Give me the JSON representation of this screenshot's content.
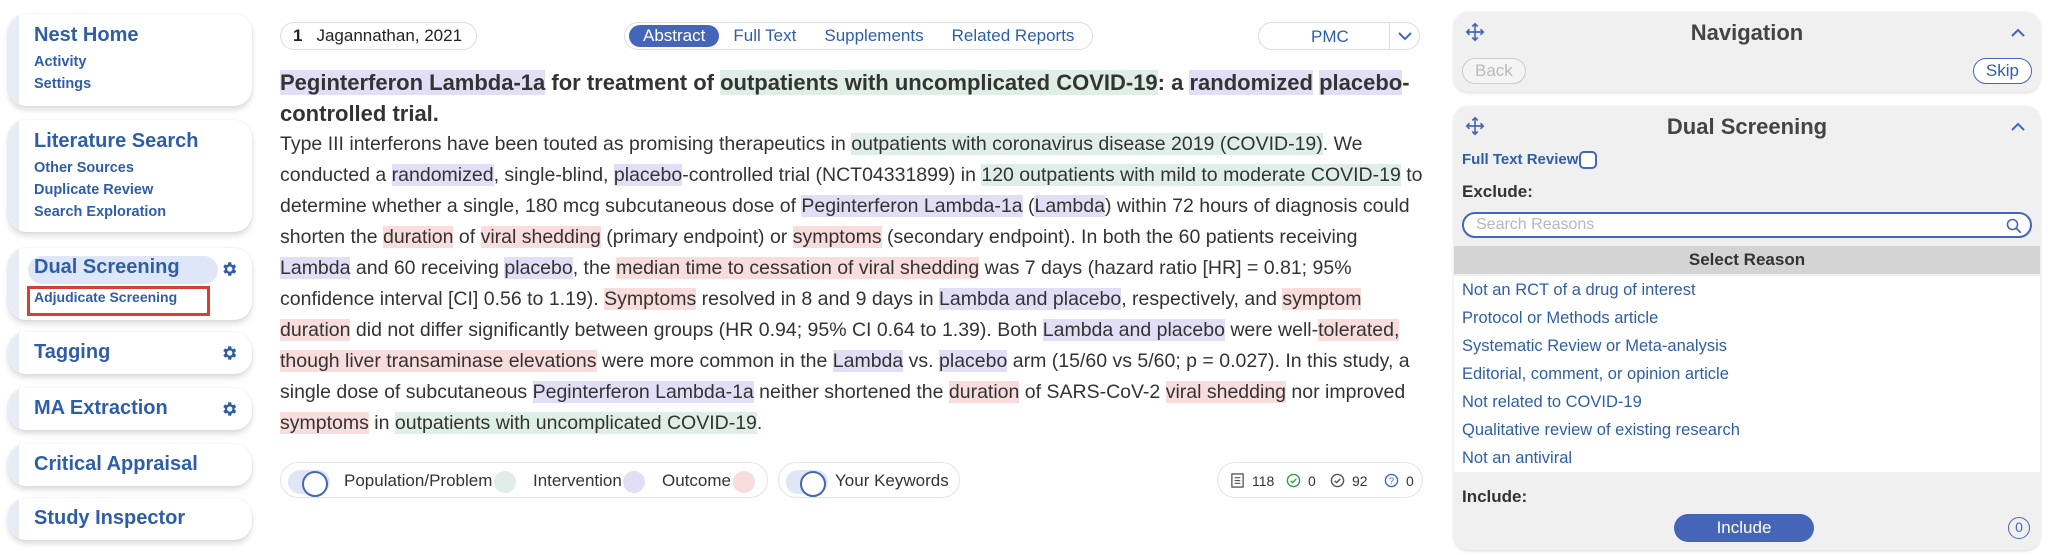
{
  "sidebar": {
    "nest_home": {
      "title": "Nest Home",
      "links": [
        "Activity",
        "Settings"
      ]
    },
    "literature_search": {
      "title": "Literature Search",
      "links": [
        "Other Sources",
        "Duplicate Review",
        "Search Exploration"
      ]
    },
    "dual_screening": {
      "title": "Dual Screening",
      "links": [
        "Adjudicate Screening"
      ]
    },
    "tagging": {
      "title": "Tagging"
    },
    "ma_extraction": {
      "title": "MA Extraction"
    },
    "critical_appraisal": {
      "title": "Critical Appraisal"
    },
    "study_inspector": {
      "title": "Study Inspector"
    }
  },
  "topbar": {
    "citation_number": "1",
    "citation_label": "Jagannathan, 2021",
    "tabs": [
      "Abstract",
      "Full Text",
      "Supplements",
      "Related Reports"
    ],
    "active_tab": "Abstract",
    "source_select": "PMC"
  },
  "article": {
    "title": [
      {
        "t": "Peginterferon Lambda-1a",
        "h": "i"
      },
      {
        "t": " for treatment of ",
        "h": ""
      },
      {
        "t": "outpatients with uncomplicated COVID-19",
        "h": "p"
      },
      {
        "t": ": a ",
        "h": ""
      },
      {
        "t": "randomized",
        "h": "i"
      },
      {
        "t": " ",
        "h": ""
      },
      {
        "t": "placebo",
        "h": "i"
      },
      {
        "t": "-controlled trial.",
        "h": ""
      }
    ],
    "abstract": [
      {
        "t": "Type III interferons have been touted as promising therapeutics in ",
        "h": ""
      },
      {
        "t": "outpatients with coronavirus disease 2019 (COVID-19)",
        "h": "p"
      },
      {
        "t": ". We conducted a ",
        "h": ""
      },
      {
        "t": "randomized",
        "h": "i"
      },
      {
        "t": ", single-blind, ",
        "h": ""
      },
      {
        "t": "placebo",
        "h": "i"
      },
      {
        "t": "-controlled trial (NCT04331899) in ",
        "h": ""
      },
      {
        "t": "120 outpatients with mild to moderate COVID-19",
        "h": "p"
      },
      {
        "t": " to determine whether a single, 180 mcg subcutaneous dose of ",
        "h": ""
      },
      {
        "t": "Peginterferon Lambda-1a",
        "h": "i"
      },
      {
        "t": " (",
        "h": ""
      },
      {
        "t": "Lambda",
        "h": "i"
      },
      {
        "t": ") within 72 hours of diagnosis could shorten the ",
        "h": ""
      },
      {
        "t": "duration",
        "h": "o"
      },
      {
        "t": " of ",
        "h": ""
      },
      {
        "t": "viral shedding",
        "h": "o"
      },
      {
        "t": " (primary endpoint) or ",
        "h": ""
      },
      {
        "t": "symptoms",
        "h": "o"
      },
      {
        "t": " (secondary endpoint). In both the 60 patients receiving ",
        "h": ""
      },
      {
        "t": "Lambda",
        "h": "i"
      },
      {
        "t": " and 60 receiving ",
        "h": ""
      },
      {
        "t": "placebo",
        "h": "i"
      },
      {
        "t": ", the ",
        "h": ""
      },
      {
        "t": "median time to cessation of viral shedding",
        "h": "o"
      },
      {
        "t": " was 7 days (hazard ratio [HR] = 0.81; 95% confidence interval [CI] 0.56 to 1.19). ",
        "h": ""
      },
      {
        "t": "Symptoms",
        "h": "o"
      },
      {
        "t": " resolved in 8 and 9 days in ",
        "h": ""
      },
      {
        "t": "Lambda and placebo",
        "h": "i"
      },
      {
        "t": ", respectively, and ",
        "h": ""
      },
      {
        "t": "symptom duration",
        "h": "o"
      },
      {
        "t": " did not differ significantly between groups (HR 0.94; 95% CI 0.64 to 1.39). Both ",
        "h": ""
      },
      {
        "t": "Lambda and placebo",
        "h": "i"
      },
      {
        "t": " were well-",
        "h": ""
      },
      {
        "t": "tolerated, though liver transaminase elevations",
        "h": "o"
      },
      {
        "t": " were more common in the ",
        "h": ""
      },
      {
        "t": "Lambda",
        "h": "i"
      },
      {
        "t": " vs. ",
        "h": ""
      },
      {
        "t": "placebo",
        "h": "i"
      },
      {
        "t": " arm (15/60 vs 5/60; p = 0.027). In this study, a single dose of subcutaneous ",
        "h": ""
      },
      {
        "t": "Peginterferon Lambda-1a",
        "h": "i"
      },
      {
        "t": " neither shortened the ",
        "h": ""
      },
      {
        "t": "duration",
        "h": "o"
      },
      {
        "t": " of SARS-CoV-2 ",
        "h": ""
      },
      {
        "t": "viral shedding",
        "h": "o"
      },
      {
        "t": " nor improved ",
        "h": ""
      },
      {
        "t": "symptoms",
        "h": "o"
      },
      {
        "t": " in ",
        "h": ""
      },
      {
        "t": "outpatients with uncomplicated COVID-19",
        "h": "p"
      },
      {
        "t": ".",
        "h": ""
      }
    ]
  },
  "legend": {
    "population": "Population/Problem",
    "intervention": "Intervention",
    "outcome": "Outcome",
    "keywords": "Your Keywords"
  },
  "stats": {
    "total": "118",
    "included": "0",
    "excluded": "92",
    "unscreened": "0"
  },
  "navigation": {
    "title": "Navigation",
    "back": "Back",
    "skip": "Skip"
  },
  "dual_screening_panel": {
    "title": "Dual Screening",
    "full_text_review": "Full Text Review",
    "exclude_label": "Exclude:",
    "search_placeholder": "Search Reasons",
    "select_reason": "Select Reason",
    "reasons": [
      "Not an RCT of a drug of interest",
      "Protocol or Methods article",
      "Systematic Review or Meta-analysis",
      "Editorial, comment, or opinion article",
      "Not related to COVID-19",
      "Qualitative review of existing research",
      "Not an antiviral"
    ],
    "include_label": "Include:",
    "include_button": "Include",
    "include_count": "0"
  },
  "colors": {
    "accent": "#4566b8",
    "link": "#2f5ea8",
    "population": "#dfeee6",
    "intervention": "#e2def6",
    "outcome": "#f9dcdc",
    "annotation_box": "#d64033"
  }
}
